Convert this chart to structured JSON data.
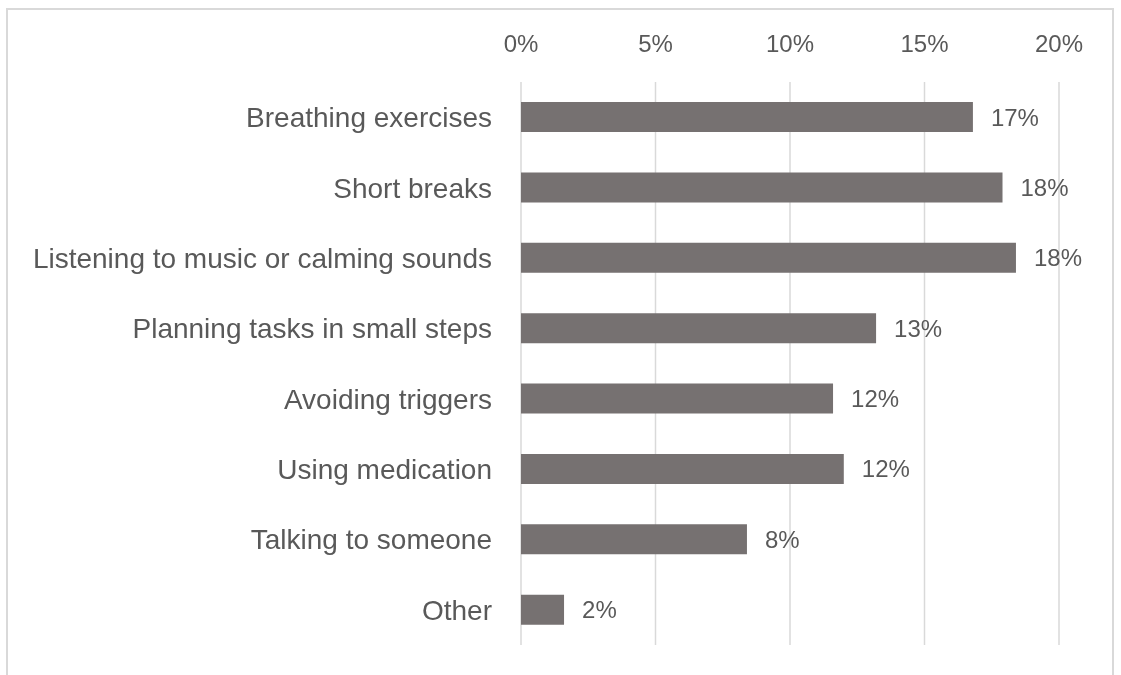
{
  "chart_data": {
    "type": "bar",
    "orientation": "horizontal",
    "categories": [
      "Breathing exercises",
      "Short breaks",
      "Listening to music or calming sounds",
      "Planning tasks in small steps",
      "Avoiding triggers",
      "Using medication",
      "Talking to someone",
      "Other"
    ],
    "values": [
      16.8,
      17.9,
      18.4,
      13.2,
      11.6,
      12.0,
      8.4,
      1.6
    ],
    "value_labels": [
      "17%",
      "18%",
      "18%",
      "13%",
      "12%",
      "12%",
      "8%",
      "2%"
    ],
    "color": "#767171",
    "xlim": [
      0,
      20
    ],
    "xticks": [
      {
        "value": 0,
        "label": "0%"
      },
      {
        "value": 5,
        "label": "5%"
      },
      {
        "value": 10,
        "label": "10%"
      },
      {
        "value": 15,
        "label": "15%"
      },
      {
        "value": 20,
        "label": "20%"
      }
    ],
    "grid": "x"
  }
}
